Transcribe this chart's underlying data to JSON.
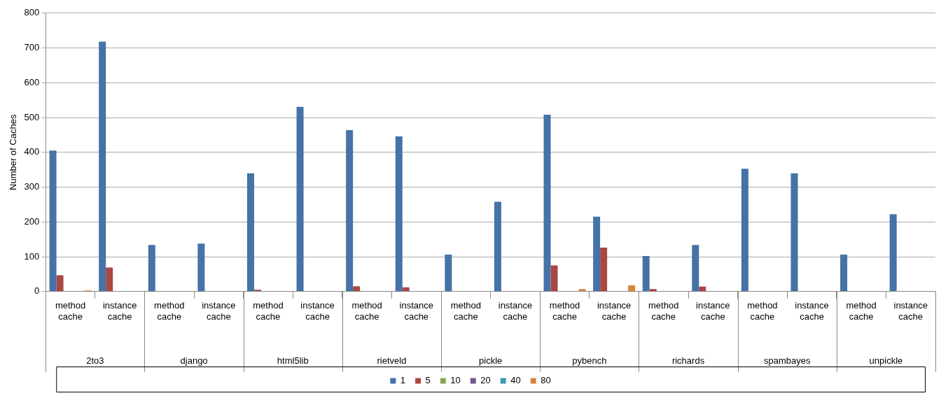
{
  "chart_data": {
    "type": "bar",
    "ylabel": "Number of Caches",
    "categories": [
      "method cache",
      "instance cache",
      "method cache",
      "instance cache",
      "method cache",
      "instance cache",
      "method cache",
      "instance cache",
      "method cache",
      "instance cache",
      "method cache",
      "instance cache",
      "method cache",
      "instance cache",
      "method cache",
      "instance cache",
      "method cache",
      "instance cache"
    ],
    "annotations": [
      "2to3",
      "django",
      "html5lib",
      "rietveld",
      "pickle",
      "pybench",
      "richards",
      "spambayes",
      "unpickle"
    ],
    "series": [
      {
        "name": "1",
        "color": "#4572a7",
        "values": [
          405,
          718,
          134,
          138,
          340,
          531,
          464,
          446,
          106,
          258,
          508,
          215,
          102,
          134,
          353,
          340,
          106,
          222
        ]
      },
      {
        "name": "5",
        "color": "#aa4643",
        "values": [
          47,
          69,
          0,
          0,
          5,
          0,
          15,
          12,
          0,
          0,
          75,
          126,
          7,
          14,
          0,
          0,
          0,
          0
        ]
      },
      {
        "name": "10",
        "color": "#89a54e",
        "values": [
          0,
          0,
          0,
          0,
          0,
          0,
          null,
          0,
          0,
          0,
          0,
          0,
          0,
          0,
          0,
          0,
          0,
          0
        ]
      },
      {
        "name": "20",
        "color": "#71588f",
        "values": [
          0,
          0,
          0,
          0,
          0,
          0,
          0,
          0,
          0,
          0,
          0,
          0,
          0,
          0,
          0,
          0,
          0,
          0
        ]
      },
      {
        "name": "40",
        "color": "#4198af",
        "values": [
          0,
          0,
          0,
          0,
          0,
          0,
          0,
          0,
          0,
          0,
          0,
          0,
          0,
          0,
          0,
          0,
          0,
          0
        ]
      },
      {
        "name": "80",
        "color": "#db843d",
        "values": [
          3,
          0,
          0,
          0,
          0,
          0,
          0,
          0,
          0,
          0,
          7,
          18,
          0,
          0,
          0,
          0,
          0,
          0
        ]
      }
    ],
    "ylim": [
      0,
      800
    ],
    "yticks": [
      0,
      100,
      200,
      300,
      400,
      500,
      600,
      700,
      800
    ],
    "grid": "y",
    "legend": "bottom"
  }
}
